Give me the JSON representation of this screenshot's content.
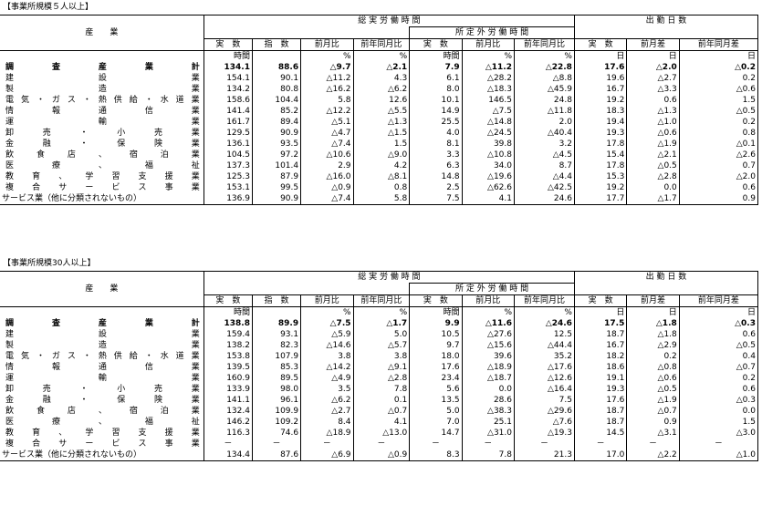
{
  "header": {
    "industry": "産　　業",
    "total_hours": "総 実 労 働 時 間",
    "overtime": "所 定 外 労 働 時 間",
    "work_days": "出 勤 日 数",
    "sub": {
      "actual": "実　数",
      "index": "指　数",
      "mom": "前月比",
      "yoy": "前年同月比",
      "diff_prev": "前月差",
      "diff_prev_year": "前年同月差"
    },
    "units": [
      "時間",
      "",
      "%",
      "%",
      "時間",
      "%",
      "%",
      "日",
      "日",
      "日"
    ]
  },
  "sections": [
    {
      "title": "【事業所規模５人以上】",
      "rows": [
        {
          "name": "調査産業計",
          "values": [
            "134.1",
            "88.6",
            "△9.7",
            "△2.1",
            "7.9",
            "△11.2",
            "△22.8",
            "17.6",
            "△2.0",
            "△0.2"
          ]
        },
        {
          "name": "建設業",
          "values": [
            "154.1",
            "90.1",
            "△11.2",
            "4.3",
            "6.1",
            "△28.2",
            "△8.8",
            "19.6",
            "△2.7",
            "0.2"
          ]
        },
        {
          "name": "製造業",
          "values": [
            "134.2",
            "80.8",
            "△16.2",
            "△6.2",
            "8.0",
            "△18.3",
            "△45.9",
            "16.7",
            "△3.3",
            "△0.6"
          ]
        },
        {
          "name": "電気・ガス・熱供給・水道業",
          "values": [
            "158.6",
            "104.4",
            "5.8",
            "12.6",
            "10.1",
            "146.5",
            "24.8",
            "19.2",
            "0.6",
            "1.5"
          ]
        },
        {
          "name": "情報通信業",
          "values": [
            "141.4",
            "85.2",
            "△12.2",
            "△5.5",
            "14.9",
            "△7.5",
            "△11.8",
            "18.3",
            "△1.3",
            "△0.5"
          ]
        },
        {
          "name": "運輸業",
          "values": [
            "161.7",
            "89.4",
            "△5.1",
            "△1.3",
            "25.5",
            "△14.8",
            "2.0",
            "19.4",
            "△1.0",
            "0.2"
          ]
        },
        {
          "name": "卸売・小売業",
          "values": [
            "129.5",
            "90.9",
            "△4.7",
            "△1.5",
            "4.0",
            "△24.5",
            "△40.4",
            "19.3",
            "△0.6",
            "0.8"
          ]
        },
        {
          "name": "金融・保険業",
          "values": [
            "136.1",
            "93.5",
            "△7.4",
            "1.5",
            "8.1",
            "39.8",
            "3.2",
            "17.8",
            "△1.9",
            "△0.1"
          ]
        },
        {
          "name": "飲食店、宿泊業",
          "values": [
            "104.5",
            "97.2",
            "△10.6",
            "△9.0",
            "3.3",
            "△10.8",
            "△4.5",
            "15.4",
            "△2.1",
            "△2.6"
          ]
        },
        {
          "name": "医療、福祉",
          "values": [
            "137.3",
            "101.4",
            "2.9",
            "4.2",
            "6.3",
            "34.0",
            "8.7",
            "17.8",
            "△0.5",
            "0.7"
          ]
        },
        {
          "name": "教育、学習支援業",
          "values": [
            "125.3",
            "87.9",
            "△16.0",
            "△8.1",
            "14.8",
            "△19.6",
            "△4.4",
            "15.3",
            "△2.8",
            "△2.0"
          ]
        },
        {
          "name": "複合サービス事業",
          "values": [
            "153.1",
            "99.5",
            "△0.9",
            "0.8",
            "2.5",
            "△62.6",
            "△42.5",
            "19.2",
            "0.0",
            "0.6"
          ]
        },
        {
          "name": "サービス業（他に分類されないもの）",
          "values": [
            "136.9",
            "90.9",
            "△7.4",
            "5.8",
            "7.5",
            "4.1",
            "24.6",
            "17.7",
            "△1.7",
            "0.9"
          ]
        }
      ]
    },
    {
      "title": "【事業所規模30人以上】",
      "rows": [
        {
          "name": "調査産業計",
          "values": [
            "138.8",
            "89.9",
            "△7.5",
            "△1.7",
            "9.9",
            "△11.6",
            "△24.6",
            "17.5",
            "△1.8",
            "△0.3"
          ]
        },
        {
          "name": "建設業",
          "values": [
            "159.4",
            "93.1",
            "△5.9",
            "5.0",
            "10.5",
            "△27.6",
            "12.5",
            "18.7",
            "△1.8",
            "0.6"
          ]
        },
        {
          "name": "製造業",
          "values": [
            "138.2",
            "82.3",
            "△14.6",
            "△5.7",
            "9.7",
            "△15.6",
            "△44.4",
            "16.7",
            "△2.9",
            "△0.5"
          ]
        },
        {
          "name": "電気・ガス・熱供給・水道業",
          "values": [
            "153.8",
            "107.9",
            "3.8",
            "3.8",
            "18.0",
            "39.6",
            "35.2",
            "18.2",
            "0.2",
            "0.4"
          ]
        },
        {
          "name": "情報通信業",
          "values": [
            "139.5",
            "85.3",
            "△14.2",
            "△9.1",
            "17.6",
            "△18.9",
            "△17.6",
            "18.6",
            "△0.8",
            "△0.7"
          ]
        },
        {
          "name": "運輸業",
          "values": [
            "160.9",
            "89.5",
            "△4.9",
            "△2.8",
            "23.4",
            "△18.7",
            "△12.6",
            "19.1",
            "△0.6",
            "0.2"
          ]
        },
        {
          "name": "卸売・小売業",
          "values": [
            "133.9",
            "98.0",
            "3.5",
            "7.8",
            "5.6",
            "0.0",
            "△16.4",
            "19.3",
            "△0.5",
            "0.6"
          ]
        },
        {
          "name": "金融・保険業",
          "values": [
            "141.1",
            "96.1",
            "△6.2",
            "0.1",
            "13.5",
            "28.6",
            "7.5",
            "17.6",
            "△1.9",
            "△0.3"
          ]
        },
        {
          "name": "飲食店、宿泊業",
          "values": [
            "132.4",
            "109.9",
            "△2.7",
            "△0.7",
            "5.0",
            "△38.3",
            "△29.6",
            "18.7",
            "△0.7",
            "0.0"
          ]
        },
        {
          "name": "医療、福祉",
          "values": [
            "146.2",
            "109.2",
            "8.4",
            "4.1",
            "7.0",
            "25.1",
            "△7.6",
            "18.7",
            "0.9",
            "1.5"
          ]
        },
        {
          "name": "教育、学習支援業",
          "values": [
            "116.3",
            "74.6",
            "△18.9",
            "△13.0",
            "14.7",
            "△31.0",
            "△19.3",
            "14.5",
            "△3.1",
            "△3.0"
          ]
        },
        {
          "name": "複合サービス事業",
          "values": [
            "－",
            "－",
            "－",
            "－",
            "－",
            "－",
            "－",
            "－",
            "－",
            "－"
          ]
        },
        {
          "name": "サービス業（他に分類されないもの）",
          "values": [
            "134.4",
            "87.6",
            "△6.9",
            "△0.9",
            "8.3",
            "7.8",
            "21.3",
            "17.0",
            "△2.2",
            "△1.0"
          ]
        }
      ]
    }
  ]
}
